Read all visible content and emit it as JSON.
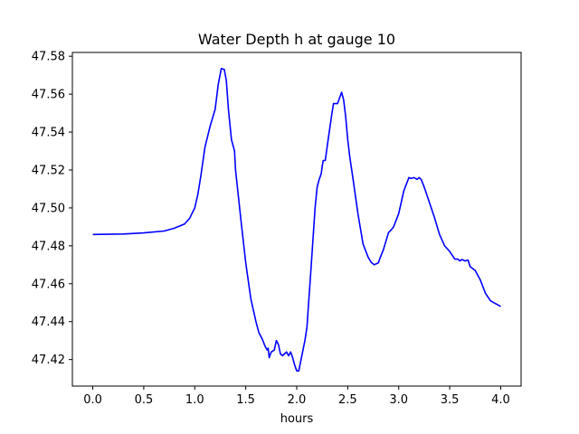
{
  "chart_data": {
    "type": "line",
    "title": "Water Depth h at gauge 10",
    "xlabel": "hours",
    "ylabel": "",
    "xlim": [
      -0.2,
      4.2
    ],
    "ylim": [
      47.406,
      47.582
    ],
    "xticks": [
      0.0,
      0.5,
      1.0,
      1.5,
      2.0,
      2.5,
      3.0,
      3.5,
      4.0
    ],
    "xtick_labels": [
      "0.0",
      "0.5",
      "1.0",
      "1.5",
      "2.0",
      "2.5",
      "3.0",
      "3.5",
      "4.0"
    ],
    "yticks": [
      47.42,
      47.44,
      47.46,
      47.48,
      47.5,
      47.52,
      47.54,
      47.56,
      47.58
    ],
    "ytick_labels": [
      "47.42",
      "47.44",
      "47.46",
      "47.48",
      "47.50",
      "47.52",
      "47.54",
      "47.56",
      "47.58"
    ],
    "grid": false,
    "series": [
      {
        "color": "#0000ff",
        "x": [
          0.0,
          0.3,
          0.5,
          0.7,
          0.8,
          0.9,
          0.95,
          1.0,
          1.03,
          1.06,
          1.1,
          1.15,
          1.2,
          1.23,
          1.26,
          1.29,
          1.31,
          1.33,
          1.36,
          1.39,
          1.4,
          1.42,
          1.45,
          1.5,
          1.55,
          1.6,
          1.63,
          1.66,
          1.69,
          1.71,
          1.72,
          1.73,
          1.75,
          1.78,
          1.8,
          1.82,
          1.84,
          1.86,
          1.88,
          1.9,
          1.92,
          1.94,
          1.96,
          1.98,
          2.0,
          2.02,
          2.05,
          2.08,
          2.1,
          2.14,
          2.18,
          2.2,
          2.22,
          2.24,
          2.25,
          2.26,
          2.28,
          2.3,
          2.34,
          2.36,
          2.4,
          2.44,
          2.46,
          2.48,
          2.5,
          2.52,
          2.55,
          2.6,
          2.65,
          2.7,
          2.73,
          2.76,
          2.8,
          2.82,
          2.85,
          2.9,
          2.92,
          2.95,
          3.0,
          3.05,
          3.1,
          3.12,
          3.15,
          3.18,
          3.2,
          3.22,
          3.25,
          3.3,
          3.35,
          3.4,
          3.45,
          3.5,
          3.55,
          3.58,
          3.6,
          3.62,
          3.65,
          3.68,
          3.7,
          3.75,
          3.8,
          3.85,
          3.9,
          3.95,
          4.0
        ],
        "y": [
          47.486,
          47.4862,
          47.4868,
          47.4878,
          47.4893,
          47.4915,
          47.4945,
          47.5,
          47.507,
          47.517,
          47.532,
          47.543,
          47.552,
          47.565,
          47.5735,
          47.573,
          47.567,
          47.552,
          47.536,
          47.53,
          47.52,
          47.51,
          47.495,
          47.471,
          47.452,
          47.44,
          47.434,
          47.431,
          47.427,
          47.425,
          47.426,
          47.421,
          47.424,
          47.425,
          47.43,
          47.428,
          47.423,
          47.422,
          47.423,
          47.424,
          47.422,
          47.424,
          47.421,
          47.417,
          47.414,
          47.414,
          47.422,
          47.43,
          47.437,
          47.468,
          47.5,
          47.511,
          47.515,
          47.518,
          47.522,
          47.525,
          47.525,
          47.533,
          47.548,
          47.555,
          47.555,
          47.561,
          47.557,
          47.548,
          47.536,
          47.527,
          47.516,
          47.497,
          47.481,
          47.474,
          47.4713,
          47.47,
          47.471,
          47.474,
          47.478,
          47.487,
          47.488,
          47.49,
          47.497,
          47.509,
          47.516,
          47.5155,
          47.516,
          47.515,
          47.516,
          47.515,
          47.511,
          47.503,
          47.495,
          47.486,
          47.48,
          47.477,
          47.473,
          47.473,
          47.472,
          47.4728,
          47.472,
          47.4725,
          47.469,
          47.467,
          47.462,
          47.455,
          47.451,
          47.4495,
          47.448
        ]
      }
    ]
  }
}
